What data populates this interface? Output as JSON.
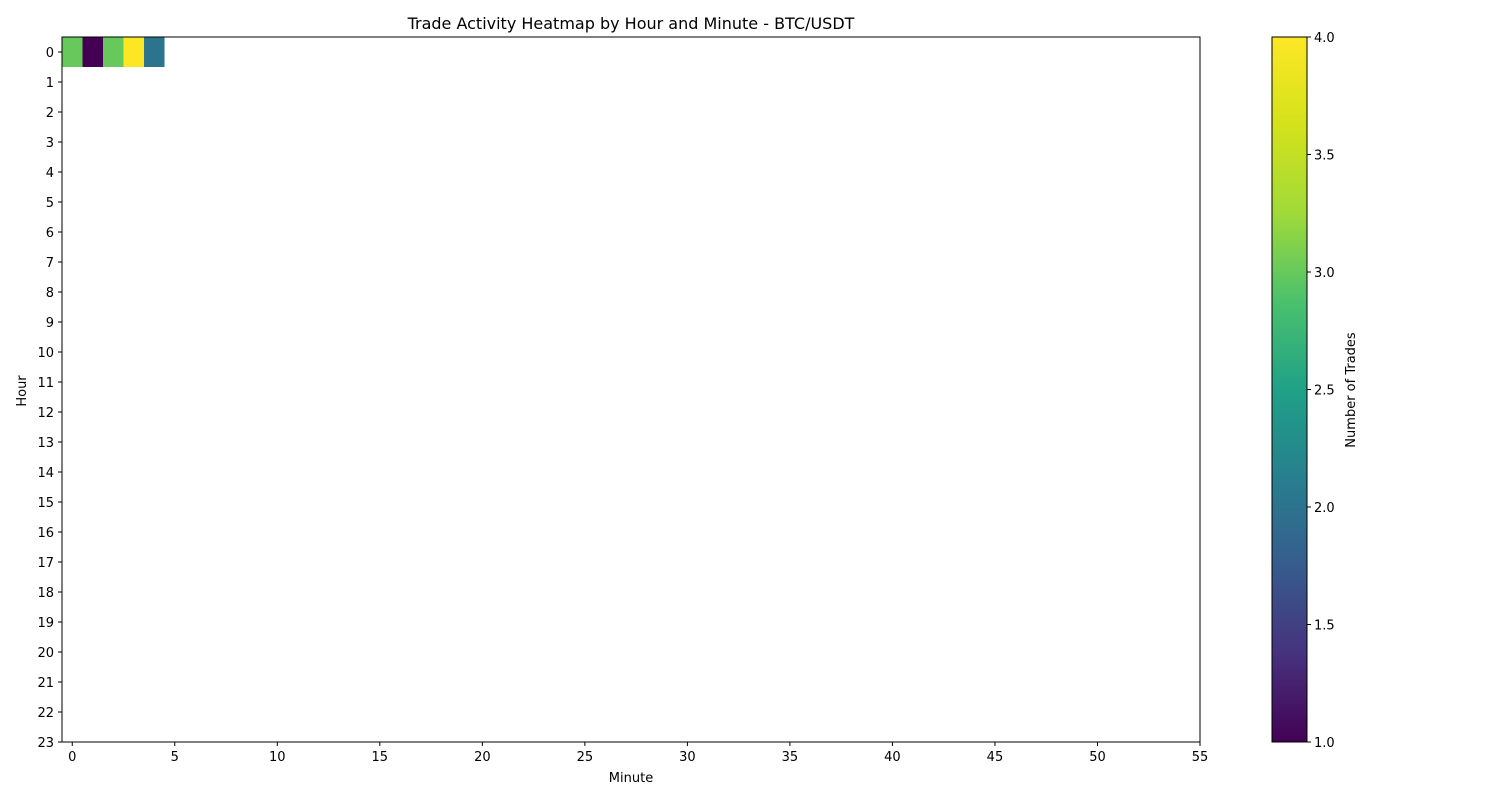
{
  "chart_data": {
    "type": "heatmap",
    "title": "Trade Activity Heatmap by Hour and Minute - BTC/USDT",
    "xlabel": "Minute",
    "ylabel": "Hour",
    "x_ticks": [
      "0",
      "5",
      "10",
      "15",
      "20",
      "25",
      "30",
      "35",
      "40",
      "45",
      "50",
      "55"
    ],
    "y_ticks": [
      "0",
      "1",
      "2",
      "3",
      "4",
      "5",
      "6",
      "7",
      "8",
      "9",
      "10",
      "11",
      "12",
      "13",
      "14",
      "15",
      "16",
      "17",
      "18",
      "19",
      "20",
      "21",
      "22",
      "23"
    ],
    "xlim": [
      -0.5,
      55
    ],
    "ylim": [
      -0.5,
      23
    ],
    "cells": [
      {
        "hour": 0,
        "minute": 0,
        "value": 3
      },
      {
        "hour": 0,
        "minute": 1,
        "value": 1
      },
      {
        "hour": 0,
        "minute": 2,
        "value": 3
      },
      {
        "hour": 0,
        "minute": 3,
        "value": 4
      },
      {
        "hour": 0,
        "minute": 4,
        "value": 2
      }
    ],
    "colorbar": {
      "label": "Number of Trades",
      "colormap": "viridis",
      "range": [
        1.0,
        4.0
      ],
      "ticks": [
        "1.0",
        "1.5",
        "2.0",
        "2.5",
        "3.0",
        "3.5",
        "4.0"
      ]
    },
    "grid": false,
    "legend": "none"
  }
}
